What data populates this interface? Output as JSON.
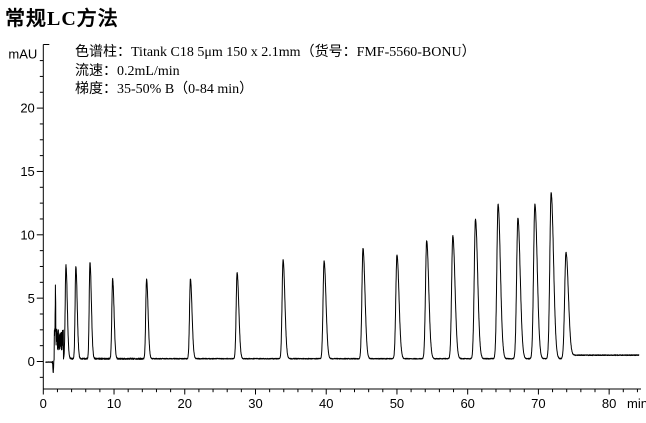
{
  "page": {
    "title": "常规LC方法",
    "background_color": "#ffffff",
    "trace_color": "#000000"
  },
  "chart_data": {
    "type": "line",
    "title": "常规LC方法",
    "xlabel": "min",
    "ylabel": "mAU",
    "xlim": [
      0,
      84
    ],
    "ylim": [
      -2.2,
      25
    ],
    "grid": "off",
    "legend": "none",
    "x_major_ticks": [
      0,
      10,
      20,
      30,
      40,
      50,
      60,
      70,
      80
    ],
    "x_minor_step": 2,
    "y_major_ticks": [
      0,
      5,
      10,
      15,
      20
    ],
    "y_minor_step": 1.25,
    "annotations": [
      "色谱柱：Titank C18 5μm 150 x 2.1mm（货号：FMF-5560-BONU）",
      "流速：0.2mL/min",
      "梯度：35-50% B（0-84 min）"
    ],
    "peaks_rt_min_height_mAU": [
      [
        3.2,
        7.4
      ],
      [
        4.6,
        7.3
      ],
      [
        6.6,
        7.6
      ],
      [
        9.8,
        6.3
      ],
      [
        14.6,
        6.3
      ],
      [
        20.8,
        6.3
      ],
      [
        27.4,
        6.8
      ],
      [
        33.9,
        7.8
      ],
      [
        39.7,
        7.7
      ],
      [
        45.2,
        8.7
      ],
      [
        50.0,
        8.2
      ],
      [
        54.2,
        9.3
      ],
      [
        57.9,
        9.7
      ],
      [
        61.1,
        11.0
      ],
      [
        64.3,
        12.2
      ],
      [
        67.1,
        11.1
      ],
      [
        69.5,
        12.2
      ],
      [
        71.8,
        13.1
      ],
      [
        73.9,
        8.4
      ]
    ],
    "solvent_front": {
      "dip_time_min": 1.4,
      "dip_depth_mAU": -1.1,
      "spike_time_min": 1.72,
      "spike_height_mAU": 4.3,
      "noise_window_min": [
        1.55,
        2.85
      ],
      "noise_level_mAU": [
        0.6,
        2.4
      ]
    },
    "baseline_mAU": {
      "pre": -0.05,
      "mid": 0.22,
      "tail": 0.5
    },
    "trace_range_min": [
      0.35,
      84.2
    ]
  }
}
